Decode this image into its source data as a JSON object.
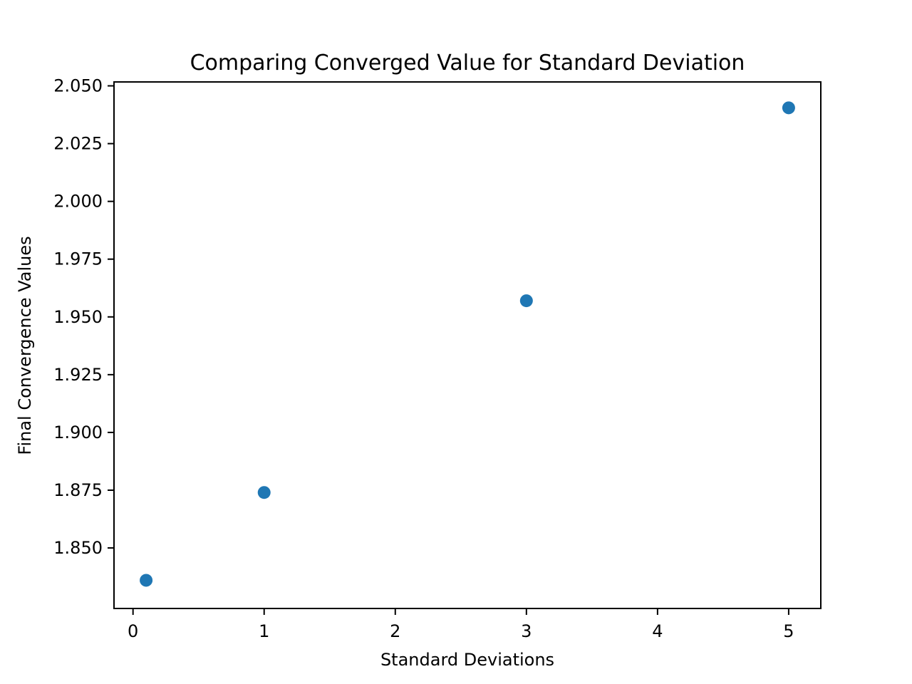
{
  "chart_data": {
    "type": "scatter",
    "title": "Comparing Converged Value for Standard Deviation",
    "xlabel": "Standard Deviations",
    "ylabel": "Final Convergence Values",
    "x": [
      0.1,
      1,
      3,
      5
    ],
    "y": [
      1.836,
      1.874,
      1.957,
      2.0405
    ],
    "xlim": [
      -0.145,
      5.245
    ],
    "ylim": [
      1.8238,
      2.0517
    ],
    "xticks": [
      0,
      1,
      2,
      3,
      4,
      5
    ],
    "xtick_labels": [
      "0",
      "1",
      "2",
      "3",
      "4",
      "5"
    ],
    "yticks": [
      1.85,
      1.875,
      1.9,
      1.925,
      1.95,
      1.975,
      2.0,
      2.025,
      2.05
    ],
    "ytick_labels": [
      "1.850",
      "1.875",
      "1.900",
      "1.925",
      "1.950",
      "1.975",
      "2.000",
      "2.025",
      "2.050"
    ],
    "grid": false,
    "legend": "none",
    "marker_color": "#1f77b4"
  }
}
